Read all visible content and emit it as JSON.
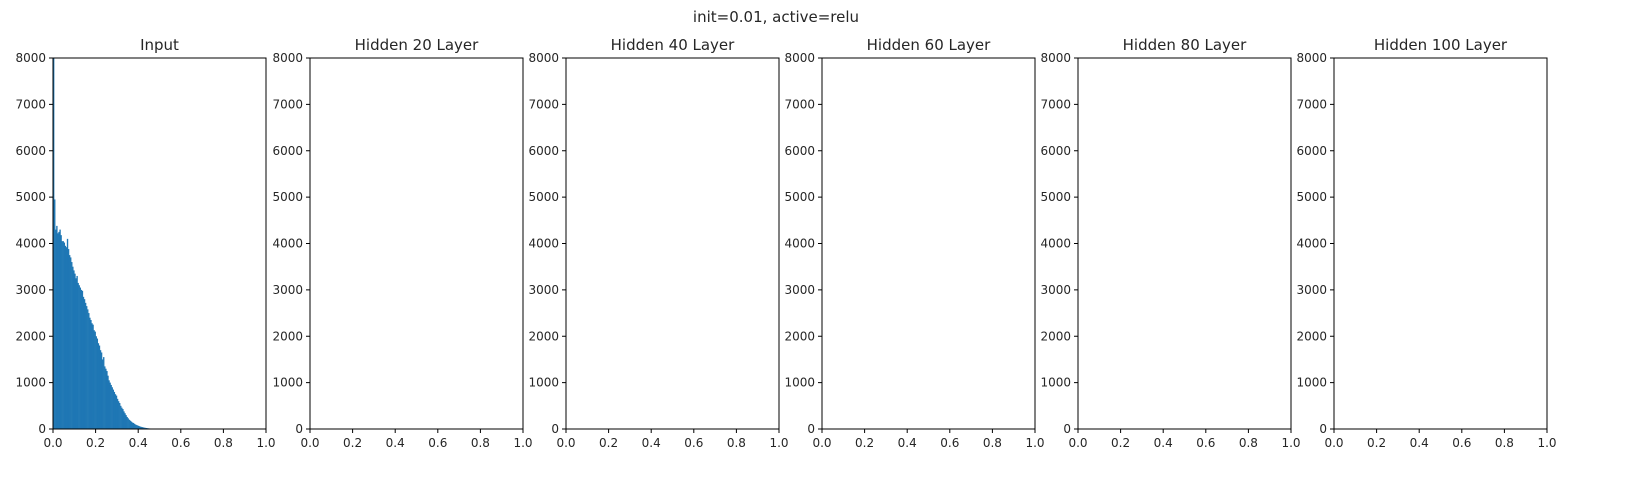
{
  "figure": {
    "suptitle": "init=0.01, active=relu",
    "bar_color": "#1f77b4"
  },
  "chart_data": [
    {
      "type": "bar",
      "title": "Input",
      "xlim": [
        0,
        1
      ],
      "ylim": [
        0,
        8000
      ],
      "xticks": [
        "0.0",
        "0.2",
        "0.4",
        "0.6",
        "0.8",
        "1.0"
      ],
      "yticks": [
        "0",
        "1000",
        "2000",
        "3000",
        "4000",
        "5000",
        "6000",
        "7000",
        "8000"
      ],
      "bin_width": 0.005,
      "bins_start": 0,
      "values": [
        8000,
        4950,
        4300,
        4380,
        4220,
        4250,
        4300,
        4180,
        4050,
        4050,
        4020,
        3950,
        3920,
        4100,
        3880,
        3750,
        3700,
        3600,
        3500,
        3420,
        3350,
        3250,
        3300,
        3150,
        3100,
        3050,
        3000,
        2980,
        2850,
        2800,
        2720,
        2650,
        2580,
        2500,
        2400,
        2350,
        2280,
        2250,
        2130,
        2100,
        2000,
        1950,
        1850,
        1800,
        1700,
        1650,
        1500,
        1550,
        1350,
        1300,
        1250,
        1150,
        1050,
        1000,
        950,
        900,
        850,
        800,
        750,
        720,
        650,
        600,
        560,
        500,
        460,
        430,
        380,
        340,
        300,
        260,
        230,
        200,
        180,
        160,
        140,
        130,
        110,
        95,
        85,
        75,
        65,
        55,
        48,
        42,
        36,
        30,
        26,
        22,
        18,
        15,
        12,
        10,
        9,
        8,
        7,
        6,
        5,
        4,
        3,
        3,
        2,
        2,
        2,
        1,
        1,
        1,
        1,
        1,
        1,
        1,
        1,
        1,
        1,
        1,
        1,
        1,
        1,
        1,
        1,
        1,
        1,
        1,
        1,
        1,
        1,
        1,
        1,
        1,
        1,
        1,
        1,
        1,
        1,
        1,
        1,
        1,
        1,
        1,
        1,
        1,
        1,
        1,
        1,
        1,
        1,
        1,
        1,
        1,
        1,
        1,
        1,
        1,
        1,
        1,
        1,
        1,
        1,
        1,
        1,
        1
      ]
    },
    {
      "type": "bar",
      "title": "Hidden 20 Layer",
      "xlim": [
        0,
        1
      ],
      "ylim": [
        0,
        8000
      ],
      "xticks": [
        "0.0",
        "0.2",
        "0.4",
        "0.6",
        "0.8",
        "1.0"
      ],
      "yticks": [
        "0",
        "1000",
        "2000",
        "3000",
        "4000",
        "5000",
        "6000",
        "7000",
        "8000"
      ],
      "values": []
    },
    {
      "type": "bar",
      "title": "Hidden 40 Layer",
      "xlim": [
        0,
        1
      ],
      "ylim": [
        0,
        8000
      ],
      "xticks": [
        "0.0",
        "0.2",
        "0.4",
        "0.6",
        "0.8",
        "1.0"
      ],
      "yticks": [
        "0",
        "1000",
        "2000",
        "3000",
        "4000",
        "5000",
        "6000",
        "7000",
        "8000"
      ],
      "values": []
    },
    {
      "type": "bar",
      "title": "Hidden 60 Layer",
      "xlim": [
        0,
        1
      ],
      "ylim": [
        0,
        8000
      ],
      "xticks": [
        "0.0",
        "0.2",
        "0.4",
        "0.6",
        "0.8",
        "1.0"
      ],
      "yticks": [
        "0",
        "1000",
        "2000",
        "3000",
        "4000",
        "5000",
        "6000",
        "7000",
        "8000"
      ],
      "values": []
    },
    {
      "type": "bar",
      "title": "Hidden 80 Layer",
      "xlim": [
        0,
        1
      ],
      "ylim": [
        0,
        8000
      ],
      "xticks": [
        "0.0",
        "0.2",
        "0.4",
        "0.6",
        "0.8",
        "1.0"
      ],
      "yticks": [
        "0",
        "1000",
        "2000",
        "3000",
        "4000",
        "5000",
        "6000",
        "7000",
        "8000"
      ],
      "values": []
    },
    {
      "type": "bar",
      "title": "Hidden 100 Layer",
      "xlim": [
        0,
        1
      ],
      "ylim": [
        0,
        8000
      ],
      "xticks": [
        "0.0",
        "0.2",
        "0.4",
        "0.6",
        "0.8",
        "1.0"
      ],
      "yticks": [
        "0",
        "1000",
        "2000",
        "3000",
        "4000",
        "5000",
        "6000",
        "7000",
        "8000"
      ],
      "values": []
    }
  ]
}
